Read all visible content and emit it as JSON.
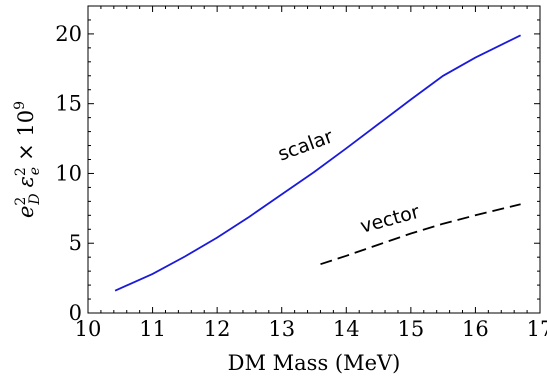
{
  "chart_data": {
    "type": "line",
    "xlabel": "DM Mass (MeV)",
    "ylabel_parts": {
      "base1": "e",
      "sup1": "2",
      "sub1": "D",
      "base2": "ε",
      "sup2": "2",
      "sub2": "e",
      "times": "× 10",
      "sup3": "9"
    },
    "xlim": [
      10,
      17
    ],
    "ylim": [
      0,
      22
    ],
    "xticks": [
      "10",
      "11",
      "12",
      "13",
      "14",
      "15",
      "16",
      "17"
    ],
    "yticks": [
      "0",
      "5",
      "10",
      "15",
      "20"
    ],
    "grid": false,
    "series": [
      {
        "name": "scalar",
        "color": "#1a1adc",
        "dash": "solid",
        "points": [
          [
            10.42,
            1.6
          ],
          [
            11.0,
            2.8
          ],
          [
            11.5,
            4.05
          ],
          [
            12.0,
            5.4
          ],
          [
            12.5,
            6.9
          ],
          [
            13.0,
            8.5
          ],
          [
            13.5,
            10.1
          ],
          [
            14.0,
            11.8
          ],
          [
            14.5,
            13.55
          ],
          [
            15.0,
            15.3
          ],
          [
            15.5,
            17.0
          ],
          [
            16.0,
            18.3
          ],
          [
            16.7,
            19.9
          ]
        ]
      },
      {
        "name": "vector",
        "color": "#000000",
        "dash": "dashed",
        "points": [
          [
            13.6,
            3.5
          ],
          [
            14.0,
            4.1
          ],
          [
            14.5,
            4.9
          ],
          [
            15.0,
            5.7
          ],
          [
            15.5,
            6.4
          ],
          [
            16.0,
            7.0
          ],
          [
            16.7,
            7.8
          ]
        ]
      }
    ],
    "annotations": [
      {
        "text": "scalar",
        "x": 13.4,
        "y": 11.6,
        "rotate": -20
      },
      {
        "text": "vector",
        "x": 14.7,
        "y": 6.3,
        "rotate": -15
      }
    ]
  }
}
